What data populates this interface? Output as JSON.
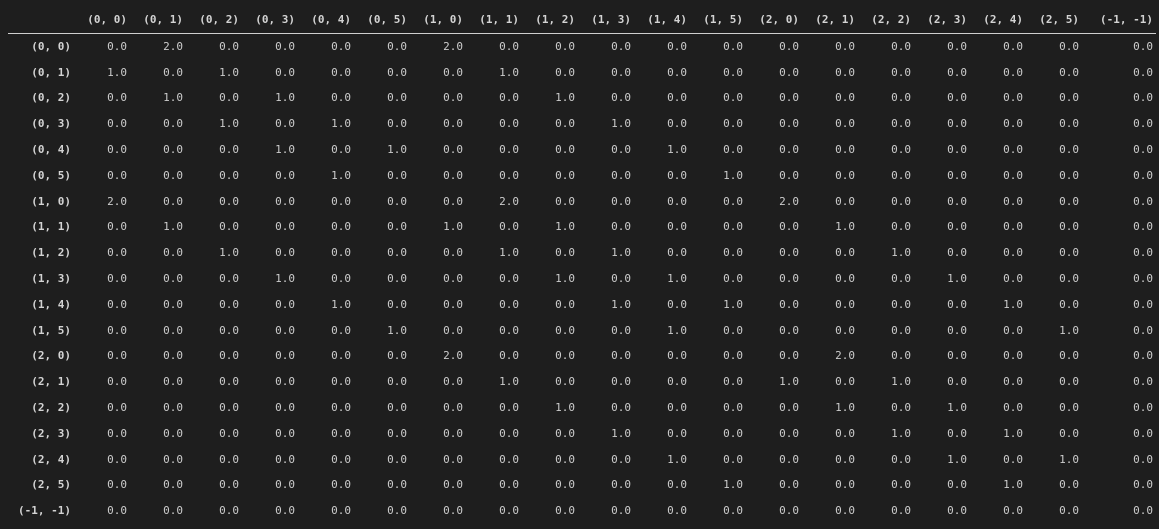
{
  "table": {
    "columns": [
      "(0, 0)",
      "(0, 1)",
      "(0, 2)",
      "(0, 3)",
      "(0, 4)",
      "(0, 5)",
      "(1, 0)",
      "(1, 1)",
      "(1, 2)",
      "(1, 3)",
      "(1, 4)",
      "(1, 5)",
      "(2, 0)",
      "(2, 1)",
      "(2, 2)",
      "(2, 3)",
      "(2, 4)",
      "(2, 5)",
      "(-1, -1)"
    ],
    "index_label": "",
    "rows": [
      {
        "label": "(0, 0)",
        "values": [
          "0.0",
          "2.0",
          "0.0",
          "0.0",
          "0.0",
          "0.0",
          "2.0",
          "0.0",
          "0.0",
          "0.0",
          "0.0",
          "0.0",
          "0.0",
          "0.0",
          "0.0",
          "0.0",
          "0.0",
          "0.0",
          "0.0"
        ]
      },
      {
        "label": "(0, 1)",
        "values": [
          "1.0",
          "0.0",
          "1.0",
          "0.0",
          "0.0",
          "0.0",
          "0.0",
          "1.0",
          "0.0",
          "0.0",
          "0.0",
          "0.0",
          "0.0",
          "0.0",
          "0.0",
          "0.0",
          "0.0",
          "0.0",
          "0.0"
        ]
      },
      {
        "label": "(0, 2)",
        "values": [
          "0.0",
          "1.0",
          "0.0",
          "1.0",
          "0.0",
          "0.0",
          "0.0",
          "0.0",
          "1.0",
          "0.0",
          "0.0",
          "0.0",
          "0.0",
          "0.0",
          "0.0",
          "0.0",
          "0.0",
          "0.0",
          "0.0"
        ]
      },
      {
        "label": "(0, 3)",
        "values": [
          "0.0",
          "0.0",
          "1.0",
          "0.0",
          "1.0",
          "0.0",
          "0.0",
          "0.0",
          "0.0",
          "1.0",
          "0.0",
          "0.0",
          "0.0",
          "0.0",
          "0.0",
          "0.0",
          "0.0",
          "0.0",
          "0.0"
        ]
      },
      {
        "label": "(0, 4)",
        "values": [
          "0.0",
          "0.0",
          "0.0",
          "1.0",
          "0.0",
          "1.0",
          "0.0",
          "0.0",
          "0.0",
          "0.0",
          "1.0",
          "0.0",
          "0.0",
          "0.0",
          "0.0",
          "0.0",
          "0.0",
          "0.0",
          "0.0"
        ]
      },
      {
        "label": "(0, 5)",
        "values": [
          "0.0",
          "0.0",
          "0.0",
          "0.0",
          "1.0",
          "0.0",
          "0.0",
          "0.0",
          "0.0",
          "0.0",
          "0.0",
          "1.0",
          "0.0",
          "0.0",
          "0.0",
          "0.0",
          "0.0",
          "0.0",
          "0.0"
        ]
      },
      {
        "label": "(1, 0)",
        "values": [
          "2.0",
          "0.0",
          "0.0",
          "0.0",
          "0.0",
          "0.0",
          "0.0",
          "2.0",
          "0.0",
          "0.0",
          "0.0",
          "0.0",
          "2.0",
          "0.0",
          "0.0",
          "0.0",
          "0.0",
          "0.0",
          "0.0"
        ]
      },
      {
        "label": "(1, 1)",
        "values": [
          "0.0",
          "1.0",
          "0.0",
          "0.0",
          "0.0",
          "0.0",
          "1.0",
          "0.0",
          "1.0",
          "0.0",
          "0.0",
          "0.0",
          "0.0",
          "1.0",
          "0.0",
          "0.0",
          "0.0",
          "0.0",
          "0.0"
        ]
      },
      {
        "label": "(1, 2)",
        "values": [
          "0.0",
          "0.0",
          "1.0",
          "0.0",
          "0.0",
          "0.0",
          "0.0",
          "1.0",
          "0.0",
          "1.0",
          "0.0",
          "0.0",
          "0.0",
          "0.0",
          "1.0",
          "0.0",
          "0.0",
          "0.0",
          "0.0"
        ]
      },
      {
        "label": "(1, 3)",
        "values": [
          "0.0",
          "0.0",
          "0.0",
          "1.0",
          "0.0",
          "0.0",
          "0.0",
          "0.0",
          "1.0",
          "0.0",
          "1.0",
          "0.0",
          "0.0",
          "0.0",
          "0.0",
          "1.0",
          "0.0",
          "0.0",
          "0.0"
        ]
      },
      {
        "label": "(1, 4)",
        "values": [
          "0.0",
          "0.0",
          "0.0",
          "0.0",
          "1.0",
          "0.0",
          "0.0",
          "0.0",
          "0.0",
          "1.0",
          "0.0",
          "1.0",
          "0.0",
          "0.0",
          "0.0",
          "0.0",
          "1.0",
          "0.0",
          "0.0"
        ]
      },
      {
        "label": "(1, 5)",
        "values": [
          "0.0",
          "0.0",
          "0.0",
          "0.0",
          "0.0",
          "1.0",
          "0.0",
          "0.0",
          "0.0",
          "0.0",
          "1.0",
          "0.0",
          "0.0",
          "0.0",
          "0.0",
          "0.0",
          "0.0",
          "1.0",
          "0.0"
        ]
      },
      {
        "label": "(2, 0)",
        "values": [
          "0.0",
          "0.0",
          "0.0",
          "0.0",
          "0.0",
          "0.0",
          "2.0",
          "0.0",
          "0.0",
          "0.0",
          "0.0",
          "0.0",
          "0.0",
          "2.0",
          "0.0",
          "0.0",
          "0.0",
          "0.0",
          "0.0"
        ]
      },
      {
        "label": "(2, 1)",
        "values": [
          "0.0",
          "0.0",
          "0.0",
          "0.0",
          "0.0",
          "0.0",
          "0.0",
          "1.0",
          "0.0",
          "0.0",
          "0.0",
          "0.0",
          "1.0",
          "0.0",
          "1.0",
          "0.0",
          "0.0",
          "0.0",
          "0.0"
        ]
      },
      {
        "label": "(2, 2)",
        "values": [
          "0.0",
          "0.0",
          "0.0",
          "0.0",
          "0.0",
          "0.0",
          "0.0",
          "0.0",
          "1.0",
          "0.0",
          "0.0",
          "0.0",
          "0.0",
          "1.0",
          "0.0",
          "1.0",
          "0.0",
          "0.0",
          "0.0"
        ]
      },
      {
        "label": "(2, 3)",
        "values": [
          "0.0",
          "0.0",
          "0.0",
          "0.0",
          "0.0",
          "0.0",
          "0.0",
          "0.0",
          "0.0",
          "1.0",
          "0.0",
          "0.0",
          "0.0",
          "0.0",
          "1.0",
          "0.0",
          "1.0",
          "0.0",
          "0.0"
        ]
      },
      {
        "label": "(2, 4)",
        "values": [
          "0.0",
          "0.0",
          "0.0",
          "0.0",
          "0.0",
          "0.0",
          "0.0",
          "0.0",
          "0.0",
          "0.0",
          "1.0",
          "0.0",
          "0.0",
          "0.0",
          "0.0",
          "1.0",
          "0.0",
          "1.0",
          "0.0"
        ]
      },
      {
        "label": "(2, 5)",
        "values": [
          "0.0",
          "0.0",
          "0.0",
          "0.0",
          "0.0",
          "0.0",
          "0.0",
          "0.0",
          "0.0",
          "0.0",
          "0.0",
          "1.0",
          "0.0",
          "0.0",
          "0.0",
          "0.0",
          "1.0",
          "0.0",
          "0.0"
        ]
      },
      {
        "label": "(-1, -1)",
        "values": [
          "0.0",
          "0.0",
          "0.0",
          "0.0",
          "0.0",
          "0.0",
          "0.0",
          "0.0",
          "0.0",
          "0.0",
          "0.0",
          "0.0",
          "0.0",
          "0.0",
          "0.0",
          "0.0",
          "0.0",
          "0.0",
          "0.0"
        ]
      }
    ]
  },
  "colors": {
    "background": "#1e1e1e",
    "text": "#cccccc",
    "header_rule": "#cfcfcf"
  }
}
